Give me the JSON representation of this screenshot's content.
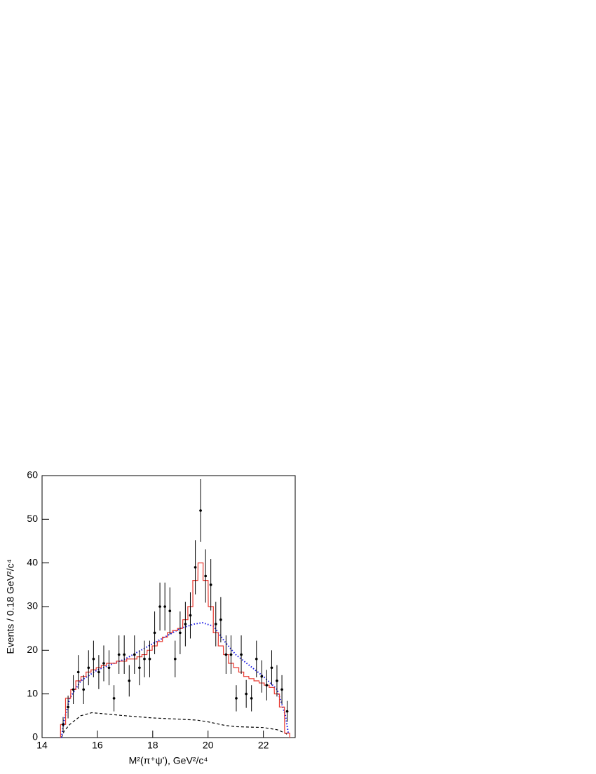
{
  "chart_data": {
    "type": "scatter",
    "x_label": "M²(π⁺ψ'), GeV²/c⁴",
    "y_label": "Events / 0.18 GeV²/c⁴",
    "xlim": [
      14,
      23.15
    ],
    "ylim": [
      0,
      60
    ],
    "xticks": [
      14,
      16,
      18,
      20,
      22
    ],
    "yticks": [
      0,
      10,
      20,
      30,
      40,
      50,
      60
    ],
    "bin_width": 0.184,
    "series": [
      {
        "type": "errorbar",
        "color": "#000000",
        "x": [
          14.76,
          14.94,
          15.13,
          15.31,
          15.5,
          15.68,
          15.86,
          16.05,
          16.23,
          16.42,
          16.6,
          16.78,
          16.97,
          17.15,
          17.34,
          17.52,
          17.7,
          17.89,
          18.07,
          18.26,
          18.44,
          18.62,
          18.81,
          18.99,
          19.18,
          19.36,
          19.54,
          19.73,
          19.91,
          20.1,
          20.28,
          20.46,
          20.65,
          20.83,
          21.02,
          21.2,
          21.38,
          21.57,
          21.75,
          21.94,
          22.12,
          22.3,
          22.49,
          22.67,
          22.86
        ],
        "values": [
          3,
          7,
          11,
          15,
          11,
          16,
          18,
          15,
          17,
          16,
          9,
          19,
          19,
          13,
          19,
          16,
          18,
          18,
          24,
          30,
          30,
          29,
          18,
          24,
          26,
          28,
          39,
          52,
          37,
          35,
          26,
          27,
          19,
          19,
          9,
          19,
          10,
          9,
          18,
          14,
          12,
          16,
          13,
          11,
          6
        ],
        "errors": [
          1.7,
          2.6,
          3.3,
          3.9,
          3.3,
          4,
          4.2,
          3.9,
          4.1,
          4,
          3,
          4.4,
          4.4,
          3.6,
          4.4,
          4,
          4.2,
          4.2,
          4.9,
          5.5,
          5.5,
          5.4,
          4.2,
          4.9,
          5.1,
          5.3,
          6.2,
          7.2,
          6.1,
          5.9,
          5.1,
          5.2,
          4.4,
          4.4,
          3,
          4.4,
          3.2,
          3,
          4.2,
          3.7,
          3.5,
          4,
          3.6,
          3.3,
          2.4
        ]
      },
      {
        "type": "step",
        "color": "#e8382f",
        "x": [
          14.76,
          14.94,
          15.13,
          15.31,
          15.5,
          15.68,
          15.86,
          16.05,
          16.23,
          16.42,
          16.6,
          16.78,
          16.97,
          17.15,
          17.34,
          17.52,
          17.7,
          17.89,
          18.07,
          18.26,
          18.44,
          18.62,
          18.81,
          18.99,
          19.18,
          19.36,
          19.54,
          19.73,
          19.91,
          20.1,
          20.28,
          20.46,
          20.65,
          20.83,
          21.02,
          21.2,
          21.38,
          21.57,
          21.75,
          21.94,
          22.12,
          22.3,
          22.49,
          22.67,
          22.86
        ],
        "values": [
          3,
          9,
          11,
          13,
          14,
          15,
          15.5,
          16,
          16.5,
          17,
          17,
          17.5,
          17.5,
          18,
          18,
          18.5,
          19,
          20,
          21,
          22,
          23,
          24,
          24.5,
          25,
          27,
          30,
          36,
          40,
          36,
          30,
          24,
          21,
          19,
          17,
          16,
          15,
          14,
          13.5,
          13,
          12.5,
          12,
          11.5,
          10,
          7,
          1
        ]
      },
      {
        "type": "dotted",
        "color": "#1a1ae6",
        "x": [
          14.7,
          14.8,
          15,
          15.4,
          16,
          17,
          18,
          19,
          19.5,
          19.8,
          20.2,
          20.6,
          21,
          21.5,
          22,
          22.5,
          22.8,
          22.9
        ],
        "values": [
          0,
          4,
          9,
          13,
          15.5,
          18,
          21.5,
          25,
          26,
          26.3,
          25.5,
          22,
          19,
          16.5,
          14,
          11,
          5,
          1
        ]
      },
      {
        "type": "dashed",
        "color": "#000000",
        "x": [
          14.7,
          14.8,
          15,
          15.4,
          15.8,
          16.5,
          17,
          18,
          19,
          19.6,
          20,
          20.6,
          21,
          22,
          22.5,
          22.8,
          22.9
        ],
        "values": [
          0,
          1.5,
          3,
          5,
          5.7,
          5.3,
          5,
          4.5,
          4.2,
          4,
          3.6,
          2.8,
          2.5,
          2.3,
          1.8,
          1,
          0.5
        ]
      }
    ]
  }
}
